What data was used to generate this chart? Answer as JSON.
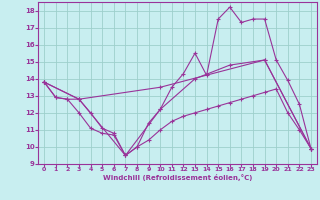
{
  "xlabel": "Windchill (Refroidissement éolien,°C)",
  "background_color": "#c8eef0",
  "grid_color": "#9dcfcc",
  "line_color": "#993399",
  "xlim": [
    -0.5,
    23.5
  ],
  "ylim": [
    9,
    18.5
  ],
  "xticks": [
    0,
    1,
    2,
    3,
    4,
    5,
    6,
    7,
    8,
    9,
    10,
    11,
    12,
    13,
    14,
    15,
    16,
    17,
    18,
    19,
    20,
    21,
    22,
    23
  ],
  "yticks": [
    9,
    10,
    11,
    12,
    13,
    14,
    15,
    16,
    17,
    18
  ],
  "series": [
    {
      "x": [
        0,
        1,
        2,
        3,
        4,
        5,
        6,
        7,
        8,
        9,
        10,
        11,
        12,
        13,
        14,
        15,
        16,
        17,
        18,
        19,
        20,
        21,
        22,
        23
      ],
      "y": [
        13.8,
        12.9,
        12.8,
        12.8,
        12.0,
        11.1,
        10.8,
        9.5,
        10.0,
        11.4,
        12.2,
        13.5,
        14.3,
        15.5,
        14.2,
        17.5,
        18.2,
        17.3,
        17.5,
        17.5,
        15.1,
        13.9,
        12.5,
        9.9
      ]
    },
    {
      "x": [
        0,
        3,
        10,
        19,
        23
      ],
      "y": [
        13.8,
        12.8,
        13.5,
        15.1,
        9.9
      ]
    },
    {
      "x": [
        0,
        3,
        7,
        10,
        13,
        16,
        19,
        23
      ],
      "y": [
        13.8,
        12.8,
        9.5,
        12.2,
        14.0,
        14.8,
        15.1,
        9.9
      ]
    },
    {
      "x": [
        0,
        1,
        2,
        3,
        4,
        5,
        6,
        7,
        8,
        9,
        10,
        11,
        12,
        13,
        14,
        15,
        16,
        17,
        18,
        19,
        20,
        21,
        22,
        23
      ],
      "y": [
        13.8,
        12.9,
        12.8,
        12.0,
        11.1,
        10.8,
        10.7,
        9.5,
        10.0,
        10.4,
        11.0,
        11.5,
        11.8,
        12.0,
        12.2,
        12.4,
        12.6,
        12.8,
        13.0,
        13.2,
        13.4,
        12.0,
        11.0,
        9.9
      ]
    }
  ]
}
